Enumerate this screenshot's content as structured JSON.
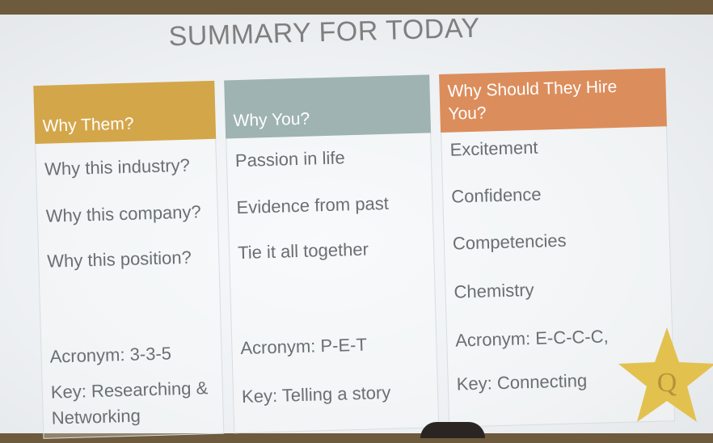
{
  "title": "SUMMARY FOR TODAY",
  "columns": [
    {
      "header": "Why Them?",
      "items": [
        "Why this industry?",
        "Why this company?",
        "Why this position?"
      ],
      "acronym": "Acronym: 3-3-5",
      "key": "Key: Researching &",
      "key_line2": "Networking"
    },
    {
      "header": "Why You?",
      "items": [
        "Passion in life",
        "Evidence from past",
        "Tie it all together"
      ],
      "acronym": "Acronym: P-E-T",
      "key": "Key: Telling a story"
    },
    {
      "header_line1": "Why Should They Hire",
      "header_line2": "You?",
      "items": [
        "Excitement",
        "Confidence",
        "Competencies",
        "Chemistry"
      ],
      "acronym": "Acronym: E-C-C-C,",
      "key": "Key: Connecting"
    }
  ],
  "star_letter": "Q",
  "colors": {
    "header_1": "#d4a64a",
    "header_2": "#9fb3b3",
    "header_3": "#dc8d5c",
    "star": "#e2c14e"
  }
}
